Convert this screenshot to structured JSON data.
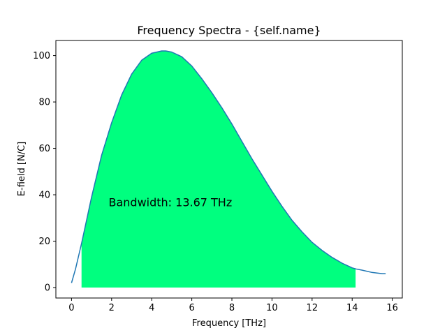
{
  "chart_data": {
    "type": "area",
    "title": "Frequency Spectra - {self.name}",
    "xlabel": "Frequency [THz]",
    "ylabel": "E-field [N/C]",
    "xlim": [
      -0.78,
      16.5
    ],
    "ylim": [
      -4.5,
      106.5
    ],
    "xticks": [
      0,
      2,
      4,
      6,
      8,
      10,
      12,
      14,
      16
    ],
    "yticks": [
      0,
      20,
      40,
      60,
      80,
      100
    ],
    "grid": false,
    "series": [
      {
        "x": [
          0,
          0.2,
          0.5,
          0.8,
          1,
          1.5,
          2,
          2.5,
          3,
          3.5,
          4,
          4.5,
          4.7,
          5,
          5.5,
          6,
          6.5,
          7,
          7.5,
          8,
          8.5,
          9,
          9.5,
          10,
          10.5,
          11,
          11.5,
          12,
          12.5,
          13,
          13.5,
          14,
          14.2,
          14.5,
          15,
          15.5,
          15.67
        ],
        "y": [
          2,
          8,
          19,
          31,
          39,
          57,
          71,
          83,
          92,
          98,
          101,
          102,
          102,
          101.5,
          99.5,
          95.5,
          90,
          84,
          77.5,
          70.5,
          63,
          55.5,
          48.5,
          41.5,
          35,
          29,
          24,
          19.5,
          16,
          13,
          10.5,
          8.5,
          8,
          7.5,
          6.5,
          6,
          6
        ],
        "color": "#1f77b4"
      }
    ],
    "fill": {
      "x_start": 0.5,
      "x_end": 14.17,
      "color": "#00ff7f"
    },
    "annotation": {
      "text": "Bandwidth: 13.67 THz",
      "x": 1.85,
      "y": 35
    }
  }
}
